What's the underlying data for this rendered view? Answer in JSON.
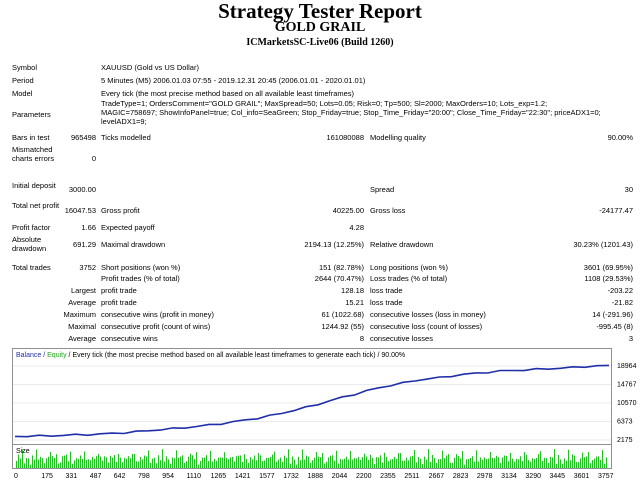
{
  "header": {
    "title": "Strategy Tester Report",
    "subtitle": "GOLD GRAIL",
    "server": "ICMarketsSC-Live06 (Build 1260)"
  },
  "info": {
    "symbol_label": "Symbol",
    "symbol_value": "XAUUSD (Gold vs US Dollar)",
    "period_label": "Period",
    "period_value": "5 Minutes (M5) 2006.01.03 07:55 - 2019.12.31 20:45 (2006.01.01 - 2020.01.01)",
    "model_label": "Model",
    "model_value": "Every tick (the most precise method based on all available least timeframes)",
    "parameters_label": "Parameters",
    "parameters_value": "TradeType=1; OrdersComment=\"GOLD GRAIL\"; MaxSpread=50; Lots=0.05; Risk=0; Tp=500; Sl=2000; MaxOrders=10; Lots_exp=1.2; MAGIC=758697; ShowInfoPanel=true; Col_info=SeaGreen; Stop_Friday=true; Stop_Time_Friday=\"20:00\"; Close_Time_Friday=\"22:30\"; priceADX1=0; levelADX1=9;"
  },
  "stats": {
    "bars_label": "Bars in test",
    "bars_value": "965498",
    "ticks_label": "Ticks modelled",
    "ticks_value": "161080088",
    "quality_label": "Modelling quality",
    "quality_value": "90.00%",
    "mismatch_label": "Mismatched charts errors",
    "mismatch_value": "0",
    "deposit_label": "Initial deposit",
    "deposit_value": "3000.00",
    "spread_label": "Spread",
    "spread_value": "30",
    "netprofit_label": "Total net profit",
    "netprofit_value": "16047.53",
    "grossprofit_label": "Gross profit",
    "grossprofit_value": "40225.00",
    "grossloss_label": "Gross loss",
    "grossloss_value": "-24177.47",
    "pf_label": "Profit factor",
    "pf_value": "1.66",
    "payoff_label": "Expected payoff",
    "payoff_value": "4.28",
    "absdd_label": "Absolute drawdown",
    "absdd_value": "691.29",
    "maxdd_label": "Maximal drawdown",
    "maxdd_value": "2194.13 (12.25%)",
    "reldd_label": "Relative drawdown",
    "reldd_value": "30.23% (1201.43)",
    "trades_label": "Total trades",
    "trades_value": "3752",
    "short_label": "Short positions (won %)",
    "short_value": "151 (82.78%)",
    "long_label": "Long positions (won %)",
    "long_value": "3601 (69.95%)",
    "ptrades_label": "Profit trades (% of total)",
    "ptrades_value": "2644 (70.47%)",
    "ltrades_label": "Loss trades (% of total)",
    "ltrades_value": "1108 (29.53%)",
    "largest_label": "Largest",
    "largest_p_label": "profit trade",
    "largest_p_value": "128.18",
    "largest_l_label": "loss trade",
    "largest_l_value": "-203.22",
    "average_label": "Average",
    "average_p_label": "profit trade",
    "average_p_value": "15.21",
    "average_l_label": "loss trade",
    "average_l_value": "-21.82",
    "maximum_label": "Maximum",
    "maximum_p_label": "consecutive wins (profit in money)",
    "maximum_p_value": "61 (1022.68)",
    "maximum_l_label": "consecutive losses (loss in money)",
    "maximum_l_value": "14 (-291.96)",
    "maximal_label": "Maximal",
    "maximal_p_label": "consecutive profit (count of wins)",
    "maximal_p_value": "1244.92 (55)",
    "maximal_l_label": "consecutive loss (count of losses)",
    "maximal_l_value": "-995.45 (8)",
    "average2_label": "Average",
    "average2_p_label": "consecutive wins",
    "average2_p_value": "8",
    "average2_l_label": "consecutive losses",
    "average2_l_value": "3"
  },
  "chart_legend": {
    "balance": "Balance",
    "sep1": " / ",
    "equity": "Equity",
    "sep2": " / ",
    "model": "Every tick (the most precise method based on all available least timeframes to generate each tick)",
    "sep3": " / ",
    "quality": "90.00%"
  },
  "colors": {
    "balance": "#1f2fa8",
    "equity": "#22a722",
    "volume": "#22c022"
  },
  "chart_data": {
    "type": "line",
    "series": [
      {
        "name": "Balance",
        "values": [
          3000,
          3050,
          3090,
          3150,
          3250,
          3330,
          3420,
          3520,
          3660,
          3830,
          4050,
          4300,
          4530,
          4740,
          4980,
          5250,
          5570,
          5900,
          6280,
          6700,
          7120,
          7650,
          8250,
          8900,
          9550,
          10300,
          11100,
          11850,
          12550,
          13300,
          14000,
          14600,
          15100,
          15650,
          16050,
          16300,
          16700,
          17050,
          17300,
          17550,
          17800,
          17950,
          18050,
          18200,
          18350,
          18480,
          18620,
          18850,
          18964,
          19020
        ]
      }
    ],
    "y_ticks": [
      "18964",
      "14767",
      "10570",
      "6373",
      "2175"
    ],
    "x_ticks": [
      "0",
      "175",
      "331",
      "487",
      "642",
      "798",
      "954",
      "1110",
      "1265",
      "1421",
      "1577",
      "1732",
      "1888",
      "2044",
      "2200",
      "2355",
      "2511",
      "2667",
      "2823",
      "2978",
      "3134",
      "3290",
      "3445",
      "3601",
      "3757"
    ],
    "size_label": "Size",
    "ylim": [
      2175,
      18964
    ],
    "xlim": [
      0,
      3757
    ]
  }
}
